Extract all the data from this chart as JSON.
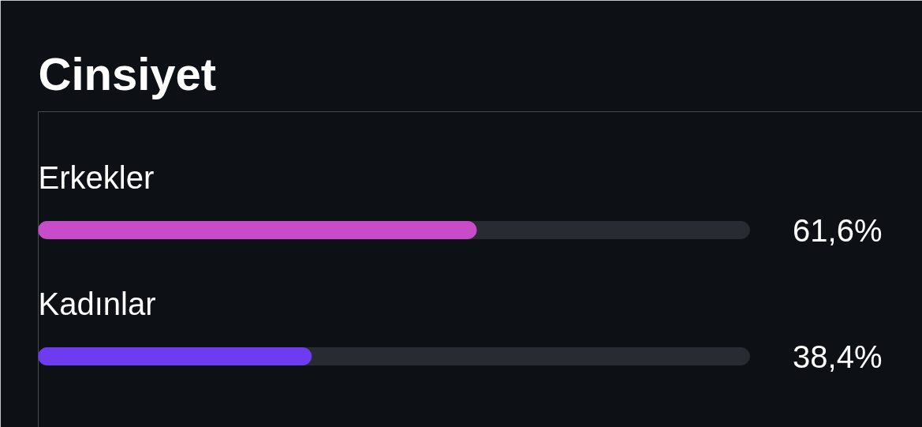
{
  "chart_data": {
    "type": "bar",
    "title": "Cinsiyet",
    "orientation": "horizontal",
    "categories": [
      "Erkekler",
      "Kadınlar"
    ],
    "values": [
      61.6,
      38.4
    ],
    "colors": [
      "#c84bc8",
      "#6e3cf0"
    ],
    "value_labels": [
      "61,6%",
      "38,4%"
    ],
    "xlim": [
      0,
      100
    ],
    "tick_labels": false
  }
}
